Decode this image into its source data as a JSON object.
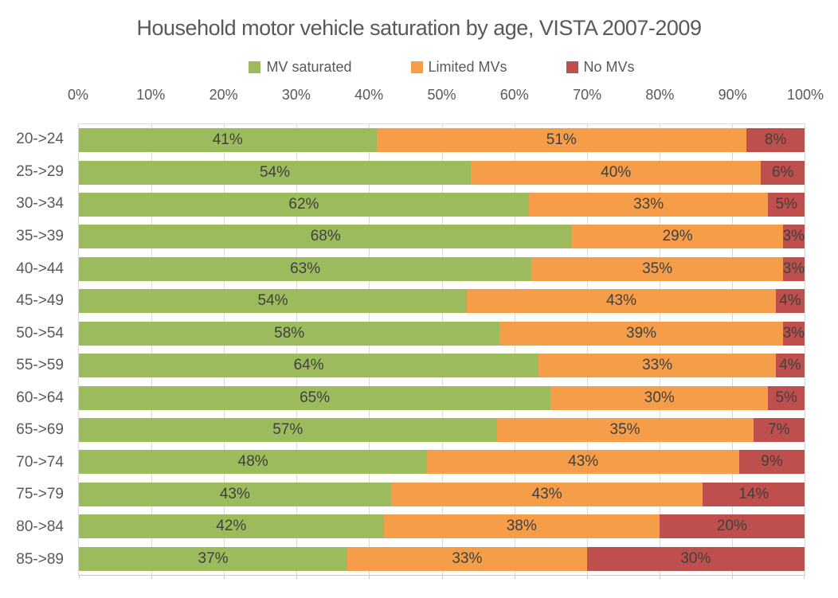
{
  "title": "Household motor vehicle saturation by age, VISTA 2007-2009",
  "colors": {
    "green": "#9CBB5C",
    "orange": "#F59D49",
    "red": "#BF4F4C",
    "title_text": "#595959",
    "axis_text": "#595959",
    "data_label_text": "#404040",
    "gridline": "#D9D9D9",
    "axis_line": "#C9C9C9",
    "background": "#FFFFFF"
  },
  "chart_data": {
    "type": "bar",
    "orientation": "horizontal",
    "stacked": true,
    "title": "Household motor vehicle saturation by age, VISTA 2007-2009",
    "categories": [
      "20->24",
      "25->29",
      "30->34",
      "35->39",
      "40->44",
      "45->49",
      "50->54",
      "55->59",
      "60->64",
      "65->69",
      "70->74",
      "75->79",
      "80->84",
      "85->89"
    ],
    "series": [
      {
        "name": "MV saturated",
        "color_key": "green",
        "values": [
          41,
          54,
          62,
          68,
          63,
          54,
          58,
          64,
          65,
          57,
          48,
          43,
          42,
          37
        ]
      },
      {
        "name": "Limited MVs",
        "color_key": "orange",
        "values": [
          51,
          40,
          33,
          29,
          35,
          43,
          39,
          33,
          30,
          35,
          43,
          43,
          38,
          33
        ]
      },
      {
        "name": "No MVs",
        "color_key": "red",
        "values": [
          8,
          6,
          5,
          3,
          3,
          4,
          3,
          4,
          5,
          7,
          9,
          14,
          20,
          30
        ]
      }
    ],
    "x_ticks": [
      "0%",
      "10%",
      "20%",
      "30%",
      "40%",
      "50%",
      "60%",
      "70%",
      "80%",
      "90%",
      "100%"
    ],
    "xlim": [
      0,
      100
    ],
    "value_suffix": "%",
    "xlabel": "",
    "ylabel": "",
    "legend_position": "top",
    "grid": "vertical"
  }
}
